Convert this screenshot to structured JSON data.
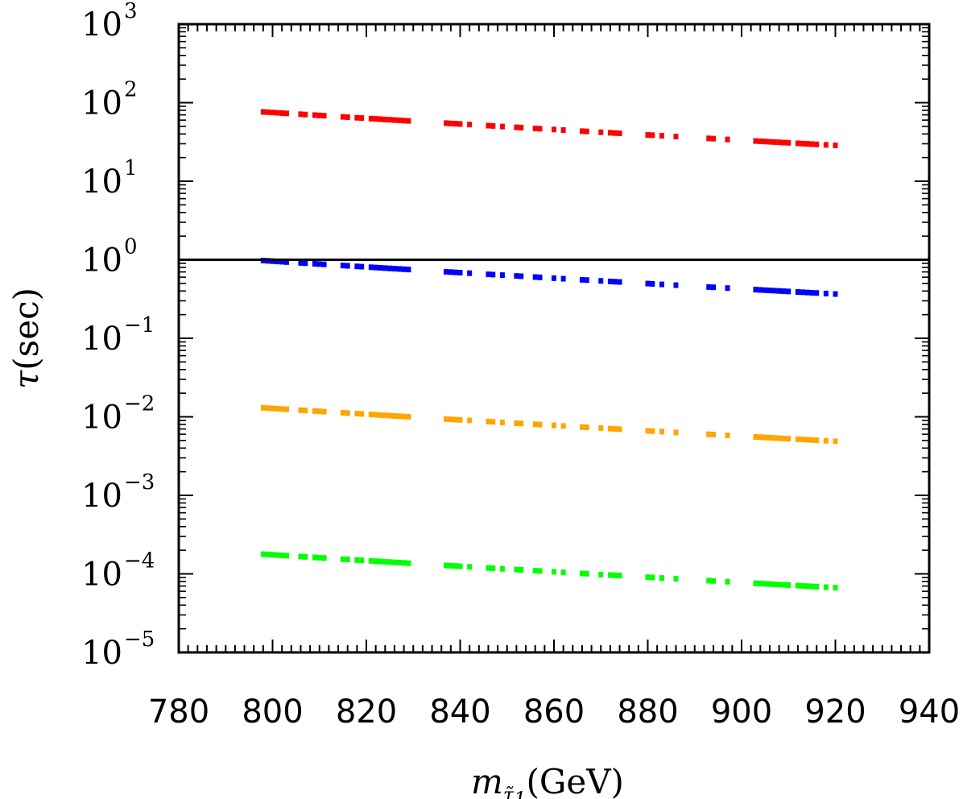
{
  "chart_data": {
    "type": "scatter",
    "xlabel_base": "m",
    "xlabel_sub": "τ̃",
    "xlabel_subsub": "1",
    "xlabel_unit": "(GeV)",
    "ylabel_symbol": "τ",
    "ylabel_unit": "(sec)",
    "xlim": [
      780,
      940
    ],
    "ylim": [
      1e-05,
      1000
    ],
    "yscale": "log",
    "x_ticks": [
      "780",
      "800",
      "820",
      "840",
      "860",
      "880",
      "900",
      "920",
      "940"
    ],
    "y_ticks": [
      {
        "base": "10",
        "exp": "−5"
      },
      {
        "base": "10",
        "exp": "−4"
      },
      {
        "base": "10",
        "exp": "−3"
      },
      {
        "base": "10",
        "exp": "−2"
      },
      {
        "base": "10",
        "exp": "−1"
      },
      {
        "base": "10",
        "exp": "0"
      },
      {
        "base": "10",
        "exp": "1"
      },
      {
        "base": "10",
        "exp": "2"
      },
      {
        "base": "10",
        "exp": "3"
      }
    ],
    "reference_line": {
      "y": 1,
      "color": "#000000"
    },
    "grid": false,
    "x_points": [
      798,
      799,
      800,
      801,
      802,
      803,
      806,
      807,
      809,
      810,
      811,
      815,
      816,
      818,
      819,
      821,
      822,
      823,
      824,
      825,
      826,
      827,
      828,
      829,
      837,
      838,
      839,
      840,
      842,
      846,
      847,
      849,
      852,
      853,
      856,
      857,
      860,
      862,
      866,
      867,
      870,
      872,
      873,
      874,
      880,
      881,
      883,
      886,
      893,
      894,
      897,
      903,
      904,
      905,
      906,
      907,
      908,
      909,
      910,
      912,
      913,
      914,
      915,
      916,
      918,
      920
    ],
    "series": [
      {
        "color": "#ff0000",
        "tau_at_800": 75,
        "exponent": -6.9
      },
      {
        "color": "#0000ff",
        "tau_at_800": 0.96,
        "exponent": -6.9
      },
      {
        "color": "#ffa500",
        "tau_at_800": 0.0128,
        "exponent": -6.9
      },
      {
        "color": "#00ff00",
        "tau_at_800": 0.000175,
        "exponent": -6.9
      }
    ]
  }
}
